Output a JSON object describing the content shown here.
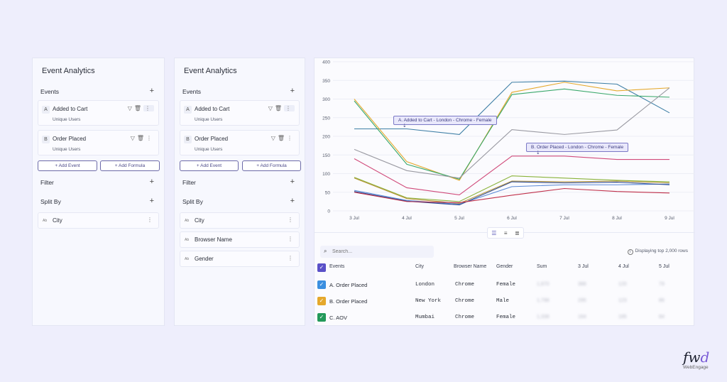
{
  "panel1": {
    "title": "Event Analytics",
    "events_label": "Events",
    "events": [
      {
        "badge": "A",
        "name": "Added to Cart",
        "metric": "Unique Users"
      },
      {
        "badge": "B",
        "name": "Order Placed",
        "metric": "Unique Users"
      }
    ],
    "add_event": "+  Add Event",
    "add_formula": "+  Add Formula",
    "filter_label": "Filter",
    "split_by_label": "Split By",
    "dimensions": [
      {
        "ab": "Ab",
        "name": "City"
      }
    ]
  },
  "panel2": {
    "title": "Event Analytics",
    "events_label": "Events",
    "events": [
      {
        "badge": "A",
        "name": "Added to Cart",
        "metric": "Unique Users"
      },
      {
        "badge": "B",
        "name": "Order Placed",
        "metric": "Unique Users"
      }
    ],
    "add_event": "+  Add Event",
    "add_formula": "+  Add Formula",
    "filter_label": "Filter",
    "split_by_label": "Split By",
    "dimensions": [
      {
        "ab": "Ab",
        "name": "City"
      },
      {
        "ab": "Ab",
        "name": "Browser Name"
      },
      {
        "ab": "Ab",
        "name": "Gender"
      }
    ]
  },
  "chart_data": {
    "type": "line",
    "x": [
      "3 Jul",
      "4 Jul",
      "5 Jul",
      "6 Jul",
      "7 Jul",
      "8 Jul",
      "9 Jul"
    ],
    "ylim": [
      0,
      400
    ],
    "yticks": [
      0,
      50,
      100,
      150,
      200,
      250,
      300,
      350,
      400
    ],
    "grid": true,
    "series": [
      {
        "color": "#3f7fa6",
        "values": [
          220,
          220,
          205,
          345,
          348,
          340,
          263
        ]
      },
      {
        "color": "#e5a82b",
        "values": [
          300,
          132,
          82,
          318,
          345,
          322,
          330
        ]
      },
      {
        "color": "#3aa86b",
        "values": [
          295,
          125,
          85,
          312,
          327,
          310,
          305
        ]
      },
      {
        "color": "#9a9aa2",
        "values": [
          165,
          108,
          88,
          218,
          205,
          217,
          330
        ]
      },
      {
        "color": "#d04a7a",
        "values": [
          140,
          62,
          43,
          147,
          147,
          138,
          138
        ]
      },
      {
        "color": "#8ab33a",
        "values": [
          90,
          35,
          25,
          94,
          88,
          82,
          78
        ]
      },
      {
        "color": "#b8953a",
        "values": [
          88,
          33,
          20,
          80,
          78,
          80,
          75
        ]
      },
      {
        "color": "#5b8ad6",
        "values": [
          55,
          28,
          18,
          65,
          70,
          70,
          72
        ]
      },
      {
        "color": "#2e4a8f",
        "values": [
          52,
          26,
          16,
          78,
          75,
          77,
          70
        ]
      },
      {
        "color": "#c0304a",
        "values": [
          50,
          25,
          22,
          42,
          60,
          52,
          48
        ]
      }
    ],
    "annotations": [
      "A. Added to Cart - London - Chrome - Female",
      "B. Order Placed - London - Chrome - Female"
    ]
  },
  "table": {
    "search_placeholder": "Search...",
    "display_note": "Displaying top 2,000 rows",
    "headers": [
      "Events",
      "City",
      "Browser Name",
      "Gender",
      "Sum",
      "3 Jul",
      "4 Jul",
      "5 Jul"
    ],
    "rows": [
      {
        "color": "#3b8fe0",
        "event": "A. Order Placed",
        "city": "London",
        "browser": "Chrome",
        "gender": "Female",
        "sum": "1,870",
        "d1": "388",
        "d2": "120",
        "d3": "79"
      },
      {
        "color": "#e5a82b",
        "event": "B. Order Placed",
        "city": "New York",
        "browser": "Chrome",
        "gender": "Male",
        "sum": "1,798",
        "d1": "295",
        "d2": "123",
        "d3": "86"
      },
      {
        "color": "#23995a",
        "event": "C. AOV",
        "city": "Mumbai",
        "browser": "Chrome",
        "gender": "Female",
        "sum": "1,338",
        "d1": "164",
        "d2": "185",
        "d3": "84"
      }
    ],
    "header_check_color": "#5a50c8"
  },
  "logo": {
    "fwd_main": "fw",
    "fwd_accent": "d",
    "brand": "WebEngage"
  }
}
